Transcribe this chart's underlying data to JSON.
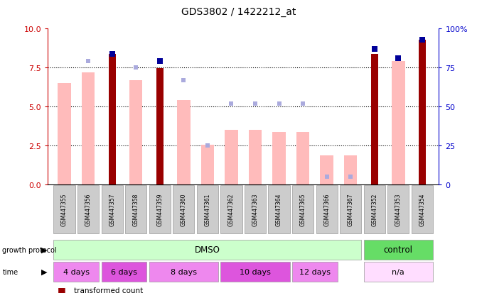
{
  "title": "GDS3802 / 1422212_at",
  "samples": [
    "GSM447355",
    "GSM447356",
    "GSM447357",
    "GSM447358",
    "GSM447359",
    "GSM447360",
    "GSM447361",
    "GSM447362",
    "GSM447363",
    "GSM447364",
    "GSM447365",
    "GSM447366",
    "GSM447367",
    "GSM447352",
    "GSM447353",
    "GSM447354"
  ],
  "transformed_count": [
    0,
    0,
    8.4,
    0,
    7.45,
    0,
    0,
    0,
    0,
    0,
    0,
    0,
    0,
    8.4,
    0,
    9.3
  ],
  "percentile_rank": [
    0,
    0,
    84,
    0,
    79,
    0,
    0,
    0,
    0,
    0,
    0,
    0,
    0,
    87,
    81,
    93
  ],
  "absent_value": [
    6.5,
    7.2,
    0,
    6.7,
    0,
    5.4,
    2.55,
    3.5,
    3.5,
    3.35,
    3.35,
    1.85,
    1.85,
    0,
    7.9,
    0
  ],
  "absent_rank_val": [
    0,
    79,
    0,
    75,
    0,
    67,
    25,
    52,
    52,
    52,
    52,
    5,
    5,
    0,
    0,
    0
  ],
  "ylim_left": [
    0,
    10
  ],
  "ylim_right": [
    0,
    100
  ],
  "yticks_left": [
    0,
    2.5,
    5.0,
    7.5,
    10
  ],
  "yticks_right": [
    0,
    25,
    50,
    75,
    100
  ],
  "dark_red": "#990000",
  "light_pink": "#ffbbbb",
  "dark_blue": "#000099",
  "light_blue": "#aaaadd",
  "background": "#ffffff"
}
